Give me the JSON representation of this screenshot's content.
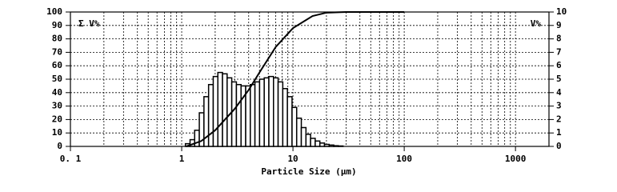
{
  "chart_data": {
    "type": "histogram",
    "x_label": "Particle Size (μm)",
    "y_label": "Σ V%",
    "y2_label": "V%",
    "xlim": [
      0.1,
      2000
    ],
    "xticks": [
      {
        "value": 0.1,
        "label": "0. 1"
      },
      1,
      10,
      100,
      1000
    ],
    "xminorticks": [
      0.2,
      0.3,
      0.4,
      0.5,
      0.6,
      0.7,
      0.8,
      0.9,
      2,
      3,
      4,
      5,
      6,
      7,
      8,
      9,
      20,
      30,
      40,
      50,
      60,
      70,
      80,
      90,
      200,
      300,
      400,
      500,
      600,
      700,
      800,
      900
    ],
    "log_x": true,
    "ylim": [
      0,
      100
    ],
    "yticks": [
      0,
      10,
      20,
      30,
      40,
      50,
      60,
      70,
      80,
      90,
      100
    ],
    "y2lim": [
      0,
      10
    ],
    "y2ticks": [
      0,
      1,
      2,
      3,
      4,
      5,
      6,
      7,
      8,
      9,
      10
    ],
    "grid": true,
    "series": [
      {
        "type": "histogram",
        "axis": "y2",
        "color": "#000000",
        "bins": [
          1.08,
          1.189,
          1.308,
          1.44,
          1.585,
          1.745,
          1.921,
          2.114,
          2.327,
          2.561,
          2.819,
          3.103,
          3.416,
          3.76,
          4.138,
          4.555,
          5.014,
          5.519,
          6.074,
          6.686,
          7.359,
          8.1,
          8.916,
          9.814,
          10.8,
          11.89,
          13.09,
          14.4,
          15.85,
          17.45,
          19.21,
          21.14,
          23.27,
          25.61,
          28.19
        ],
        "values": [
          0.2,
          0.5,
          1.2,
          2.5,
          3.7,
          4.6,
          5.2,
          5.5,
          5.4,
          5.1,
          4.8,
          4.6,
          4.5,
          4.5,
          4.6,
          4.8,
          5.0,
          5.1,
          5.2,
          5.1,
          4.8,
          4.3,
          3.7,
          2.9,
          2.1,
          1.4,
          0.9,
          0.6,
          0.4,
          0.25,
          0.15,
          0.1,
          0.05,
          0.03
        ]
      },
      {
        "type": "line",
        "axis": "y",
        "color": "#000000",
        "x": [
          1.1,
          1.5,
          2,
          3,
          4,
          5,
          7,
          10,
          15,
          20,
          30,
          100
        ],
        "values": [
          0,
          4,
          12,
          28,
          42,
          55,
          74,
          88,
          97,
          99.5,
          100,
          100
        ]
      }
    ]
  }
}
